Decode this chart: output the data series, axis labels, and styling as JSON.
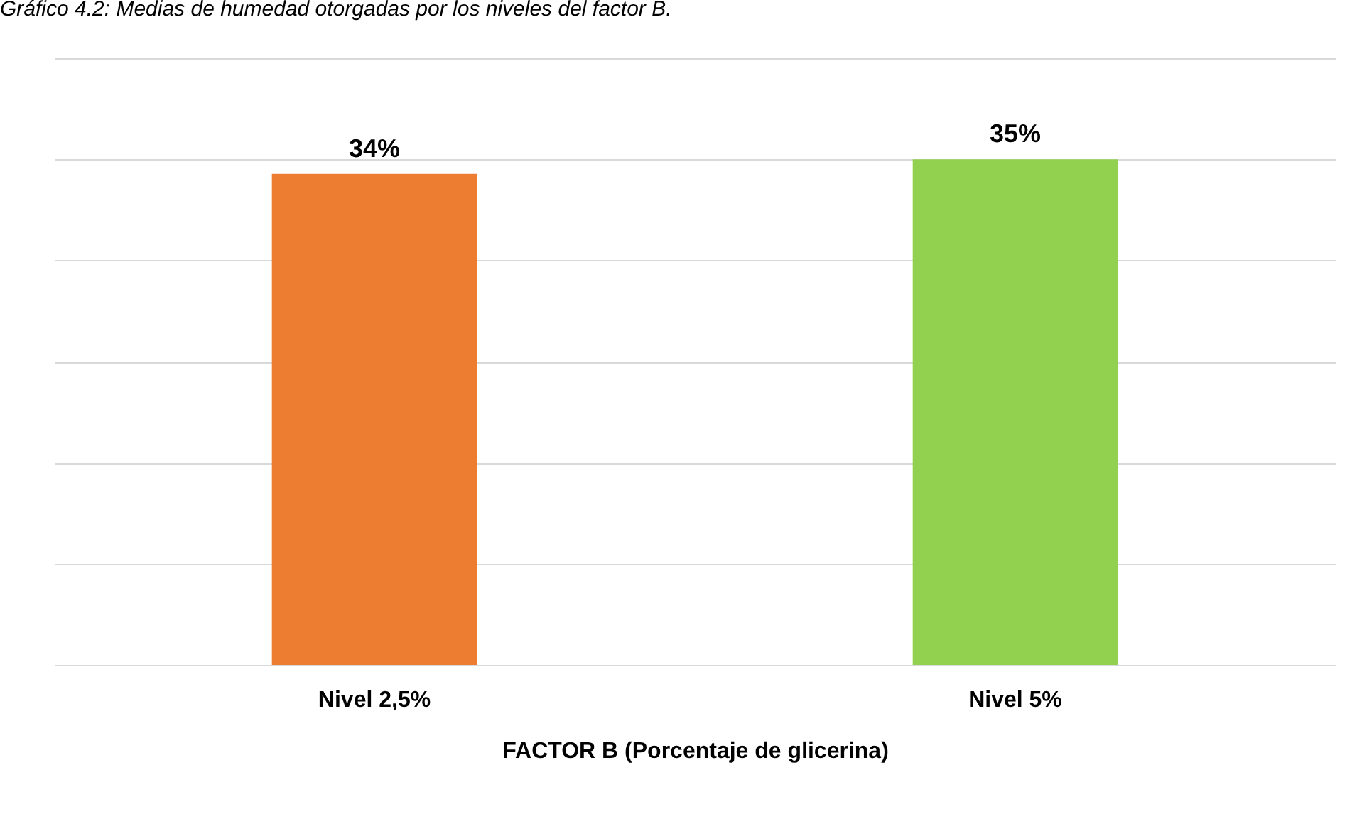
{
  "chart_data": {
    "type": "bar",
    "title": "Gráfico 4.2: Medias de humedad otorgadas por los niveles del factor B.",
    "xlabel": "FACTOR B (Porcentaje de glicerina)",
    "categories": [
      "Nivel 2,5%",
      "Nivel  5%"
    ],
    "values": [
      34,
      35
    ],
    "colors": [
      "#ed7d31",
      "#92d050"
    ],
    "value_labels": [
      "34%",
      "35%"
    ],
    "ylim": [
      0,
      42
    ],
    "yticks": [
      {
        "value": 0,
        "label": null
      },
      {
        "value": 7,
        "label": null
      },
      {
        "value": 14,
        "label": null
      },
      {
        "value": 21,
        "label": null
      },
      {
        "value": 28,
        "label": null
      },
      {
        "value": 35,
        "label": null
      },
      {
        "value": 42,
        "label": null
      }
    ],
    "grid": "y",
    "tick_labels": "x"
  }
}
